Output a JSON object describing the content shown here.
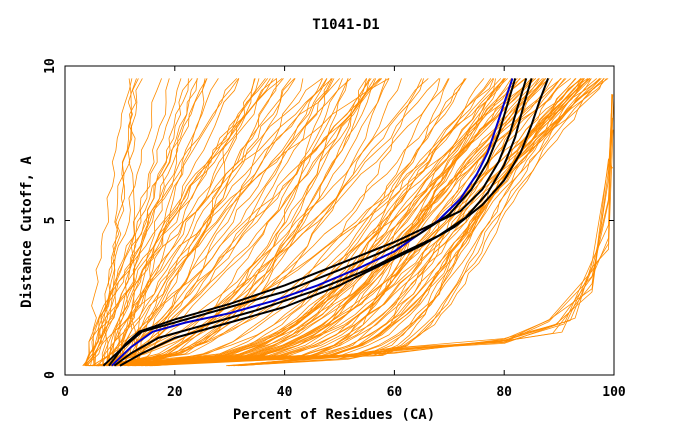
{
  "chart_data": {
    "type": "line",
    "title": "T1041-D1",
    "xlabel": "Percent of Residues (CA)",
    "ylabel": "Distance Cutoff, A",
    "xlim": [
      0,
      100
    ],
    "ylim": [
      0,
      10
    ],
    "xticks": [
      0,
      20,
      40,
      60,
      80,
      100
    ],
    "yticks": [
      0,
      5,
      10
    ],
    "grid": false,
    "legend": "none",
    "colors": {
      "models": "#ff8c00",
      "reference": "#000000",
      "highlight": "#0000cc",
      "axis": "#000000"
    },
    "series": [
      {
        "group": "highlight",
        "x": [
          8.5,
          12,
          16,
          22,
          30,
          38,
          46,
          54,
          60,
          64,
          68,
          72,
          75,
          77,
          78.5,
          80,
          81.5
        ],
        "y": [
          0.3,
          0.9,
          1.4,
          1.7,
          2.0,
          2.4,
          2.9,
          3.5,
          4.0,
          4.5,
          5.0,
          5.7,
          6.5,
          7.2,
          8.0,
          8.8,
          9.6
        ]
      },
      {
        "group": "reference",
        "x": [
          7,
          10,
          14,
          20,
          30,
          40,
          50,
          58,
          64,
          70,
          74,
          77,
          79,
          80.5,
          82
        ],
        "y": [
          0.3,
          0.8,
          1.4,
          1.7,
          2.2,
          2.7,
          3.4,
          4.0,
          4.5,
          5.2,
          6.0,
          6.9,
          7.8,
          8.7,
          9.6
        ]
      },
      {
        "group": "reference",
        "x": [
          9,
          12,
          17,
          25,
          35,
          45,
          55,
          62,
          68,
          73,
          77,
          80,
          82,
          83.5,
          85
        ],
        "y": [
          0.3,
          0.7,
          1.2,
          1.6,
          2.1,
          2.7,
          3.4,
          4.0,
          4.5,
          5.1,
          5.9,
          6.8,
          7.7,
          8.7,
          9.6
        ]
      },
      {
        "group": "reference",
        "x": [
          10,
          14,
          20,
          30,
          40,
          50,
          58,
          65,
          71,
          76,
          80,
          83,
          85,
          86.5,
          88
        ],
        "y": [
          0.3,
          0.7,
          1.2,
          1.7,
          2.2,
          2.9,
          3.6,
          4.2,
          4.8,
          5.5,
          6.3,
          7.2,
          8.1,
          8.9,
          9.6
        ]
      },
      {
        "group": "reference",
        "x": [
          8,
          11,
          13.5,
          20,
          30,
          40,
          50,
          60,
          66,
          72,
          76,
          79,
          81,
          82.5,
          84
        ],
        "y": [
          0.3,
          1.0,
          1.4,
          1.8,
          2.3,
          2.9,
          3.6,
          4.3,
          4.8,
          5.3,
          6.0,
          6.9,
          7.8,
          8.7,
          9.6
        ]
      }
    ]
  }
}
